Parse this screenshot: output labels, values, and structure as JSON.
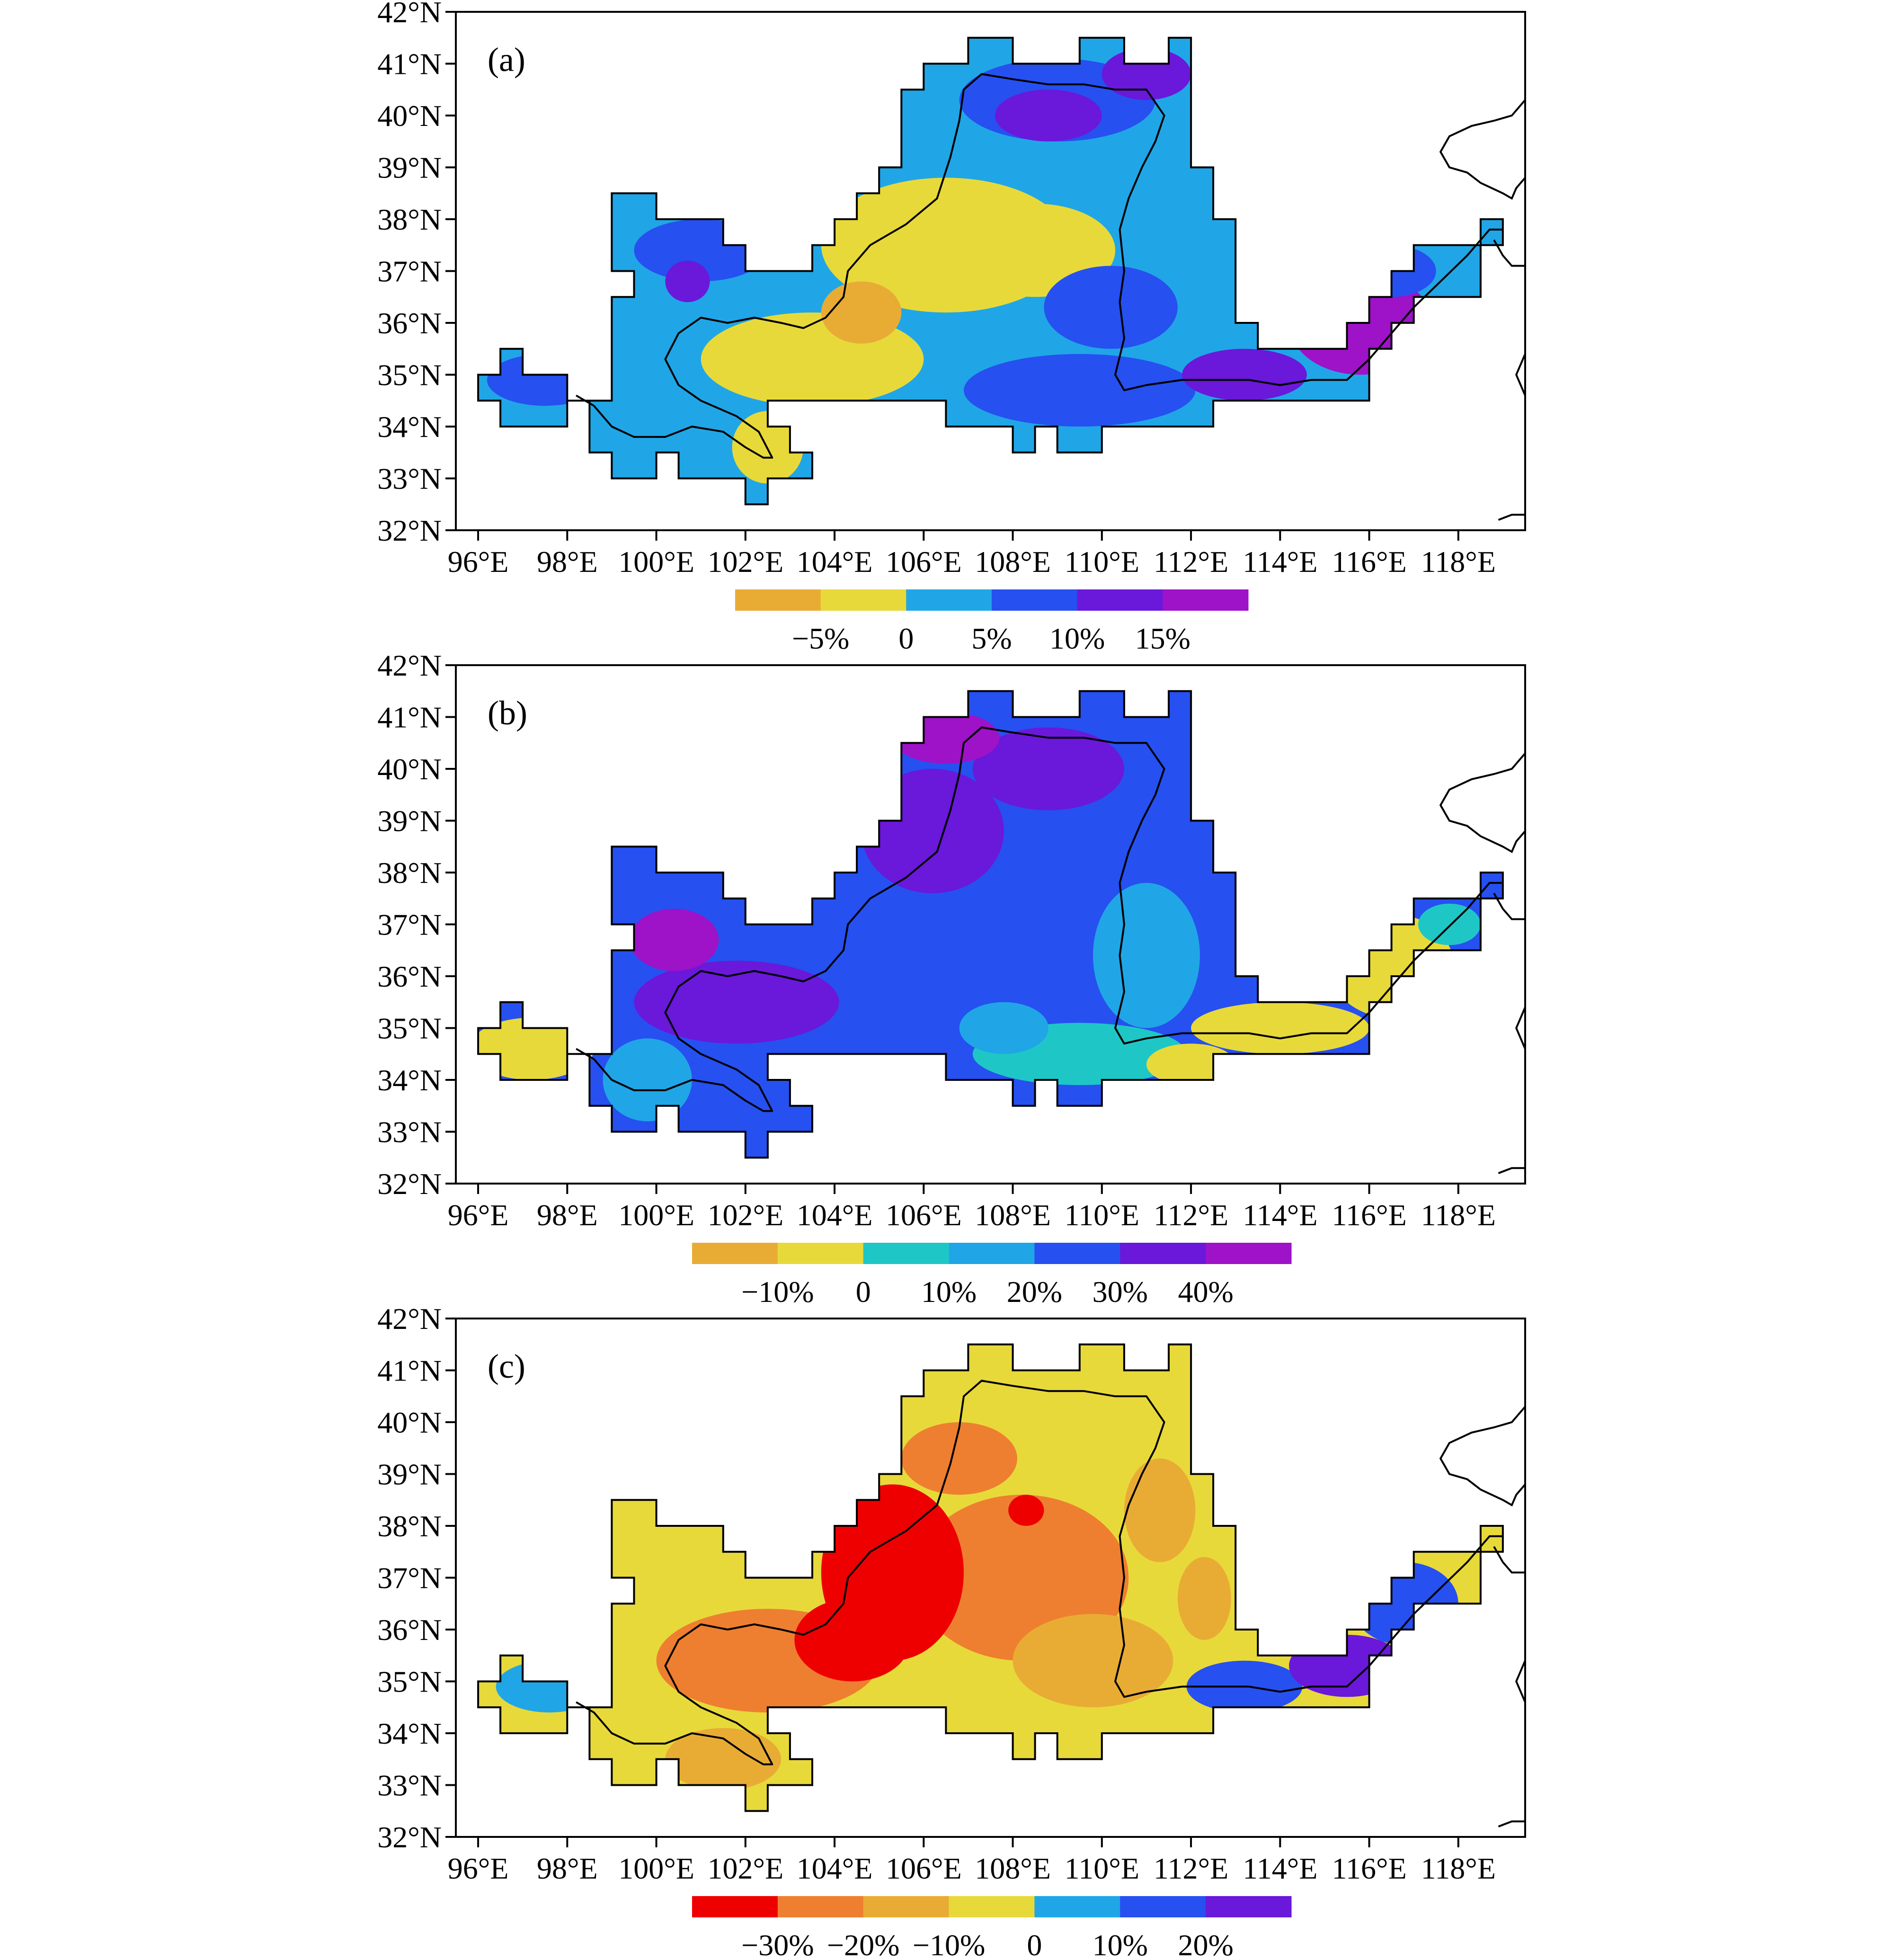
{
  "figure": {
    "panels": [
      {
        "id": "a",
        "label": "(a)",
        "lat_ticks": [
          "42°N",
          "41°N",
          "40°N",
          "39°N",
          "38°N",
          "37°N",
          "36°N",
          "35°N",
          "34°N",
          "33°N",
          "32°N"
        ],
        "lon_ticks": [
          "96°E",
          "98°E",
          "100°E",
          "102°E",
          "104°E",
          "106°E",
          "108°E",
          "110°E",
          "112°E",
          "114°E",
          "116°E",
          "118°E"
        ],
        "colorbar": {
          "colors": [
            "#e8ac35",
            "#e8d93a",
            "#20a6e6",
            "#2650f0",
            "#6a18da",
            "#9e12c8"
          ],
          "labels": [
            "−5%",
            "0",
            "5%",
            "10%",
            "15%"
          ]
        },
        "mask_fill": "#20a6e6",
        "blobs": [
          {
            "lon": 106.5,
            "lat": 37.5,
            "rx": 2.8,
            "ry": 1.3,
            "color": "#e8d93a"
          },
          {
            "lon": 103.5,
            "lat": 35.3,
            "rx": 2.5,
            "ry": 0.9,
            "color": "#e8d93a"
          },
          {
            "lon": 108.5,
            "lat": 37.4,
            "rx": 1.8,
            "ry": 0.9,
            "color": "#e8d93a"
          },
          {
            "lon": 102.5,
            "lat": 33.6,
            "rx": 0.8,
            "ry": 0.7,
            "color": "#e8d93a"
          },
          {
            "lon": 104.6,
            "lat": 36.2,
            "rx": 0.9,
            "ry": 0.6,
            "color": "#e8ac35"
          },
          {
            "lon": 109.5,
            "lat": 34.7,
            "rx": 2.6,
            "ry": 0.7,
            "color": "#2650f0"
          },
          {
            "lon": 110.2,
            "lat": 36.3,
            "rx": 1.5,
            "ry": 0.8,
            "color": "#2650f0"
          },
          {
            "lon": 109.0,
            "lat": 40.3,
            "rx": 2.2,
            "ry": 0.8,
            "color": "#2650f0"
          },
          {
            "lon": 108.8,
            "lat": 40.0,
            "rx": 1.2,
            "ry": 0.5,
            "color": "#6a18da"
          },
          {
            "lon": 111.0,
            "lat": 40.8,
            "rx": 1.0,
            "ry": 0.5,
            "color": "#6a18da"
          },
          {
            "lon": 97.5,
            "lat": 34.9,
            "rx": 1.3,
            "ry": 0.5,
            "color": "#2650f0"
          },
          {
            "lon": 101.0,
            "lat": 37.4,
            "rx": 1.5,
            "ry": 0.6,
            "color": "#2650f0"
          },
          {
            "lon": 100.7,
            "lat": 36.8,
            "rx": 0.5,
            "ry": 0.4,
            "color": "#6a18da"
          },
          {
            "lon": 113.2,
            "lat": 35.0,
            "rx": 1.4,
            "ry": 0.5,
            "color": "#6a18da"
          },
          {
            "lon": 115.8,
            "lat": 36.0,
            "rx": 1.6,
            "ry": 1.0,
            "color": "#9e12c8"
          },
          {
            "lon": 116.5,
            "lat": 37.0,
            "rx": 1.0,
            "ry": 0.5,
            "color": "#2650f0"
          }
        ]
      },
      {
        "id": "b",
        "label": "(b)",
        "lat_ticks": [
          "42°N",
          "41°N",
          "40°N",
          "39°N",
          "38°N",
          "37°N",
          "36°N",
          "35°N",
          "34°N",
          "33°N",
          "32°N"
        ],
        "lon_ticks": [
          "96°E",
          "98°E",
          "100°E",
          "102°E",
          "104°E",
          "106°E",
          "108°E",
          "110°E",
          "112°E",
          "114°E",
          "116°E",
          "118°E"
        ],
        "colorbar": {
          "colors": [
            "#e8ac35",
            "#e8d93a",
            "#1ec7c6",
            "#20a6e6",
            "#2650f0",
            "#6a18da",
            "#9e12c8"
          ],
          "labels": [
            "−10%",
            "0",
            "10%",
            "20%",
            "30%",
            "40%"
          ]
        },
        "mask_fill": "#2650f0",
        "blobs": [
          {
            "lon": 101.8,
            "lat": 35.5,
            "rx": 2.3,
            "ry": 0.8,
            "color": "#6a18da"
          },
          {
            "lon": 100.4,
            "lat": 36.7,
            "rx": 1.0,
            "ry": 0.6,
            "color": "#9e12c8"
          },
          {
            "lon": 106.2,
            "lat": 38.8,
            "rx": 1.6,
            "ry": 1.2,
            "color": "#6a18da"
          },
          {
            "lon": 108.8,
            "lat": 40.0,
            "rx": 1.7,
            "ry": 0.8,
            "color": "#6a18da"
          },
          {
            "lon": 106.5,
            "lat": 40.6,
            "rx": 1.2,
            "ry": 0.5,
            "color": "#9e12c8"
          },
          {
            "lon": 109.5,
            "lat": 34.5,
            "rx": 2.4,
            "ry": 0.6,
            "color": "#1ec7c6"
          },
          {
            "lon": 111.0,
            "lat": 36.4,
            "rx": 1.2,
            "ry": 1.4,
            "color": "#20a6e6"
          },
          {
            "lon": 107.8,
            "lat": 35.0,
            "rx": 1.0,
            "ry": 0.5,
            "color": "#20a6e6"
          },
          {
            "lon": 99.8,
            "lat": 34.0,
            "rx": 1.0,
            "ry": 0.8,
            "color": "#20a6e6"
          },
          {
            "lon": 97.2,
            "lat": 34.6,
            "rx": 1.4,
            "ry": 0.6,
            "color": "#e8d93a"
          },
          {
            "lon": 114.0,
            "lat": 35.0,
            "rx": 2.0,
            "ry": 0.5,
            "color": "#e8d93a"
          },
          {
            "lon": 116.5,
            "lat": 36.2,
            "rx": 1.4,
            "ry": 1.0,
            "color": "#e8d93a"
          },
          {
            "lon": 117.8,
            "lat": 37.0,
            "rx": 0.7,
            "ry": 0.4,
            "color": "#1ec7c6"
          },
          {
            "lon": 112.0,
            "lat": 34.3,
            "rx": 1.0,
            "ry": 0.4,
            "color": "#e8d93a"
          }
        ]
      },
      {
        "id": "c",
        "label": "(c)",
        "lat_ticks": [
          "42°N",
          "41°N",
          "40°N",
          "39°N",
          "38°N",
          "37°N",
          "36°N",
          "35°N",
          "34°N",
          "33°N",
          "32°N"
        ],
        "lon_ticks": [
          "96°E",
          "98°E",
          "100°E",
          "102°E",
          "104°E",
          "106°E",
          "108°E",
          "110°E",
          "112°E",
          "114°E",
          "116°E",
          "118°E"
        ],
        "colorbar": {
          "colors": [
            "#ee0000",
            "#ee7f30",
            "#e8ac35",
            "#e8d93a",
            "#20a6e6",
            "#2650f0",
            "#6a18da"
          ],
          "labels": [
            "−30%",
            "−20%",
            "−10%",
            "0",
            "10%",
            "20%"
          ]
        },
        "mask_fill": "#e8d93a",
        "blobs": [
          {
            "lon": 108.2,
            "lat": 37.0,
            "rx": 2.4,
            "ry": 1.6,
            "color": "#ee7f30"
          },
          {
            "lon": 102.5,
            "lat": 35.4,
            "rx": 2.5,
            "ry": 1.0,
            "color": "#ee7f30"
          },
          {
            "lon": 106.8,
            "lat": 39.3,
            "rx": 1.3,
            "ry": 0.7,
            "color": "#ee7f30"
          },
          {
            "lon": 105.3,
            "lat": 37.1,
            "rx": 1.6,
            "ry": 1.7,
            "color": "#ee0000"
          },
          {
            "lon": 104.4,
            "lat": 35.8,
            "rx": 1.3,
            "ry": 0.8,
            "color": "#ee0000"
          },
          {
            "lon": 108.3,
            "lat": 38.3,
            "rx": 0.4,
            "ry": 0.3,
            "color": "#ee0000"
          },
          {
            "lon": 109.8,
            "lat": 35.4,
            "rx": 1.8,
            "ry": 0.9,
            "color": "#e8ac35"
          },
          {
            "lon": 111.3,
            "lat": 38.3,
            "rx": 0.8,
            "ry": 1.0,
            "color": "#e8ac35"
          },
          {
            "lon": 112.3,
            "lat": 36.6,
            "rx": 0.6,
            "ry": 0.8,
            "color": "#e8ac35"
          },
          {
            "lon": 101.5,
            "lat": 33.5,
            "rx": 1.3,
            "ry": 0.6,
            "color": "#e8ac35"
          },
          {
            "lon": 97.6,
            "lat": 34.9,
            "rx": 1.2,
            "ry": 0.5,
            "color": "#20a6e6"
          },
          {
            "lon": 113.2,
            "lat": 34.9,
            "rx": 1.3,
            "ry": 0.5,
            "color": "#2650f0"
          },
          {
            "lon": 115.5,
            "lat": 35.3,
            "rx": 1.3,
            "ry": 0.6,
            "color": "#6a18da"
          },
          {
            "lon": 116.8,
            "lat": 36.5,
            "rx": 1.2,
            "ry": 0.8,
            "color": "#2650f0"
          }
        ]
      }
    ]
  }
}
